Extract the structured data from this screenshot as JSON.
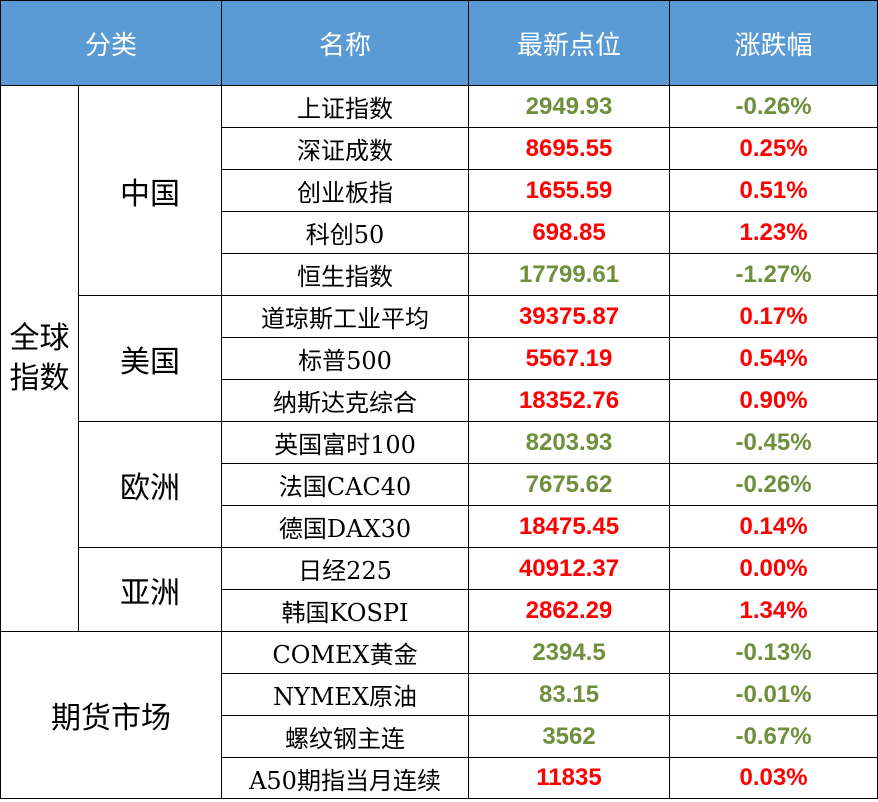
{
  "header": {
    "category": "分类",
    "name": "名称",
    "latest": "最新点位",
    "change": "涨跌幅"
  },
  "groups": {
    "global": "全球指数",
    "futures": "期货市场"
  },
  "regions": {
    "china": "中国",
    "usa": "美国",
    "europe": "欧洲",
    "asia": "亚洲"
  },
  "colors": {
    "header_bg": "#5b9bd5",
    "up": "#ff0000",
    "down": "#6f8f3c"
  },
  "rows": [
    {
      "name": "上证指数",
      "value": "2949.93",
      "change": "-0.26%",
      "direction": "down"
    },
    {
      "name": "深证成数",
      "value": "8695.55",
      "change": "0.25%",
      "direction": "up"
    },
    {
      "name": "创业板指",
      "value": "1655.59",
      "change": "0.51%",
      "direction": "up"
    },
    {
      "name": "科创50",
      "value": "698.85",
      "change": "1.23%",
      "direction": "up"
    },
    {
      "name": "恒生指数",
      "value": "17799.61",
      "change": "-1.27%",
      "direction": "down"
    },
    {
      "name": "道琼斯工业平均",
      "value": "39375.87",
      "change": "0.17%",
      "direction": "up"
    },
    {
      "name": "标普500",
      "value": "5567.19",
      "change": "0.54%",
      "direction": "up"
    },
    {
      "name": "纳斯达克综合",
      "value": "18352.76",
      "change": "0.90%",
      "direction": "up"
    },
    {
      "name": "英国富时100",
      "value": "8203.93",
      "change": "-0.45%",
      "direction": "down"
    },
    {
      "name": "法国CAC40",
      "value": "7675.62",
      "change": "-0.26%",
      "direction": "down"
    },
    {
      "name": "德国DAX30",
      "value": "18475.45",
      "change": "0.14%",
      "direction": "up"
    },
    {
      "name": "日经225",
      "value": "40912.37",
      "change": "0.00%",
      "direction": "up"
    },
    {
      "name": "韩国KOSPI",
      "value": "2862.29",
      "change": "1.34%",
      "direction": "up"
    },
    {
      "name": "COMEX黄金",
      "value": "2394.5",
      "change": "-0.13%",
      "direction": "down"
    },
    {
      "name": "NYMEX原油",
      "value": "83.15",
      "change": "-0.01%",
      "direction": "down"
    },
    {
      "name": "螺纹钢主连",
      "value": "3562",
      "change": "-0.67%",
      "direction": "down"
    },
    {
      "name": "A50期指当月连续",
      "value": "11835",
      "change": "0.03%",
      "direction": "up"
    }
  ]
}
